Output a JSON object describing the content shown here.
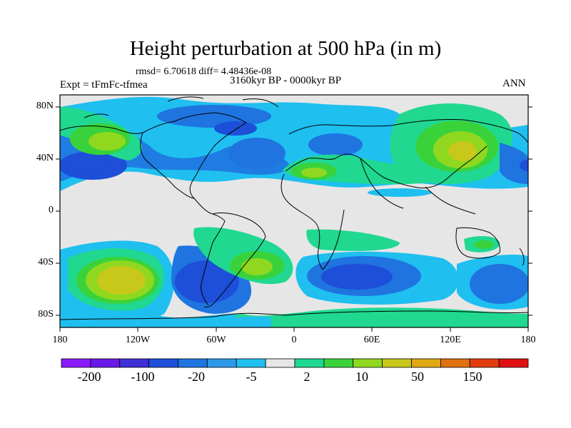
{
  "title": "Height perturbation at 500 hPa (in m)",
  "stats": "rmsd= 6.70618 diff= 4.48436e-08",
  "experiment": "Expt = tFmFc-tfmea",
  "period": "3160kyr BP - 0000kyr BP",
  "season": "ANN",
  "y_ticks": [
    "80N",
    "40N",
    "0",
    "40S",
    "80S"
  ],
  "x_ticks": [
    "180",
    "120W",
    "60W",
    "0",
    "60E",
    "120E",
    "180"
  ],
  "colorbar": {
    "labels": [
      "-200",
      "-100",
      "-20",
      "-5",
      "2",
      "10",
      "50",
      "150"
    ],
    "colors": [
      "#8a1aff",
      "#6a1ae8",
      "#3f2fd6",
      "#1d4fd8",
      "#1f74e0",
      "#2d97e8",
      "#1fbff0",
      "#e6e6e6",
      "#20d890",
      "#3ad23a",
      "#90d81f",
      "#c8c81a",
      "#e0a814",
      "#e07010",
      "#e03c10",
      "#e01010"
    ]
  },
  "palette": {
    "ocean_default": "#e6e6e6",
    "coastline": "#000000"
  }
}
